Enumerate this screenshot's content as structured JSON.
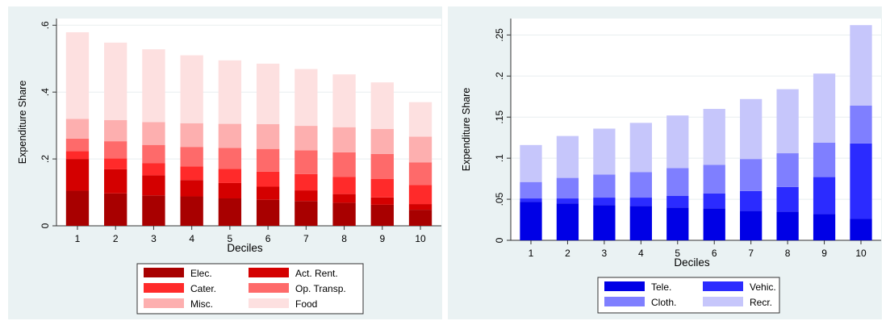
{
  "chart_data": [
    {
      "type": "bar",
      "stacked": true,
      "xlabel": "Deciles",
      "ylabel": "Expenditure Share",
      "ylim": [
        0,
        0.62
      ],
      "yticks": [
        0,
        0.2,
        0.4,
        0.6
      ],
      "ytick_labels": [
        "0",
        ".2",
        ".4",
        ".6"
      ],
      "grid": true,
      "legend_position": "bottom",
      "categories": [
        "1",
        "2",
        "3",
        "4",
        "5",
        "6",
        "7",
        "8",
        "9",
        "10"
      ],
      "series": [
        {
          "name": "Elec.",
          "color": "#a80000",
          "values": [
            0.105,
            0.097,
            0.091,
            0.088,
            0.082,
            0.078,
            0.074,
            0.069,
            0.063,
            0.048
          ]
        },
        {
          "name": "Act. Rent.",
          "color": "#d40000",
          "values": [
            0.095,
            0.072,
            0.06,
            0.049,
            0.046,
            0.039,
            0.032,
            0.026,
            0.022,
            0.017
          ]
        },
        {
          "name": "Cater.",
          "color": "#ff2a2a",
          "values": [
            0.023,
            0.033,
            0.036,
            0.041,
            0.042,
            0.045,
            0.049,
            0.051,
            0.055,
            0.057
          ]
        },
        {
          "name": "Op. Transp.",
          "color": "#fe6a6a",
          "values": [
            0.038,
            0.051,
            0.055,
            0.058,
            0.063,
            0.068,
            0.071,
            0.074,
            0.075,
            0.068
          ]
        },
        {
          "name": "Misc.",
          "color": "#fdafaf",
          "values": [
            0.059,
            0.063,
            0.068,
            0.071,
            0.072,
            0.074,
            0.073,
            0.075,
            0.075,
            0.077
          ]
        },
        {
          "name": "Food",
          "color": "#fde0e0",
          "values": [
            0.259,
            0.232,
            0.218,
            0.203,
            0.19,
            0.181,
            0.17,
            0.158,
            0.139,
            0.103
          ]
        }
      ],
      "legend_entries": [
        "Elec.",
        "Act. Rent.",
        "Cater.",
        "Op. Transp.",
        "Misc.",
        "Food"
      ]
    },
    {
      "type": "bar",
      "stacked": true,
      "xlabel": "Deciles",
      "ylabel": "Expenditure Share",
      "ylim": [
        0,
        0.27
      ],
      "yticks": [
        0,
        0.05,
        0.1,
        0.15,
        0.2,
        0.25
      ],
      "ytick_labels": [
        "0",
        ".05",
        ".1",
        ".15",
        ".2",
        ".25"
      ],
      "grid": true,
      "legend_position": "bottom",
      "categories": [
        "1",
        "2",
        "3",
        "4",
        "5",
        "6",
        "7",
        "8",
        "9",
        "10"
      ],
      "series": [
        {
          "name": "Tele.",
          "color": "#0000e6",
          "values": [
            0.047,
            0.045,
            0.043,
            0.042,
            0.04,
            0.039,
            0.036,
            0.035,
            0.032,
            0.026
          ]
        },
        {
          "name": "Vehic.",
          "color": "#2b2bff",
          "values": [
            0.004,
            0.006,
            0.009,
            0.01,
            0.014,
            0.018,
            0.024,
            0.03,
            0.045,
            0.092
          ]
        },
        {
          "name": "Cloth.",
          "color": "#7f7fff",
          "values": [
            0.02,
            0.025,
            0.028,
            0.031,
            0.034,
            0.035,
            0.039,
            0.041,
            0.042,
            0.046
          ]
        },
        {
          "name": "Recr.",
          "color": "#c6c6fb",
          "values": [
            0.045,
            0.051,
            0.056,
            0.06,
            0.064,
            0.068,
            0.073,
            0.078,
            0.084,
            0.098
          ]
        }
      ],
      "legend_entries": [
        "Tele.",
        "Vehic.",
        "Cloth.",
        "Recr."
      ]
    }
  ]
}
